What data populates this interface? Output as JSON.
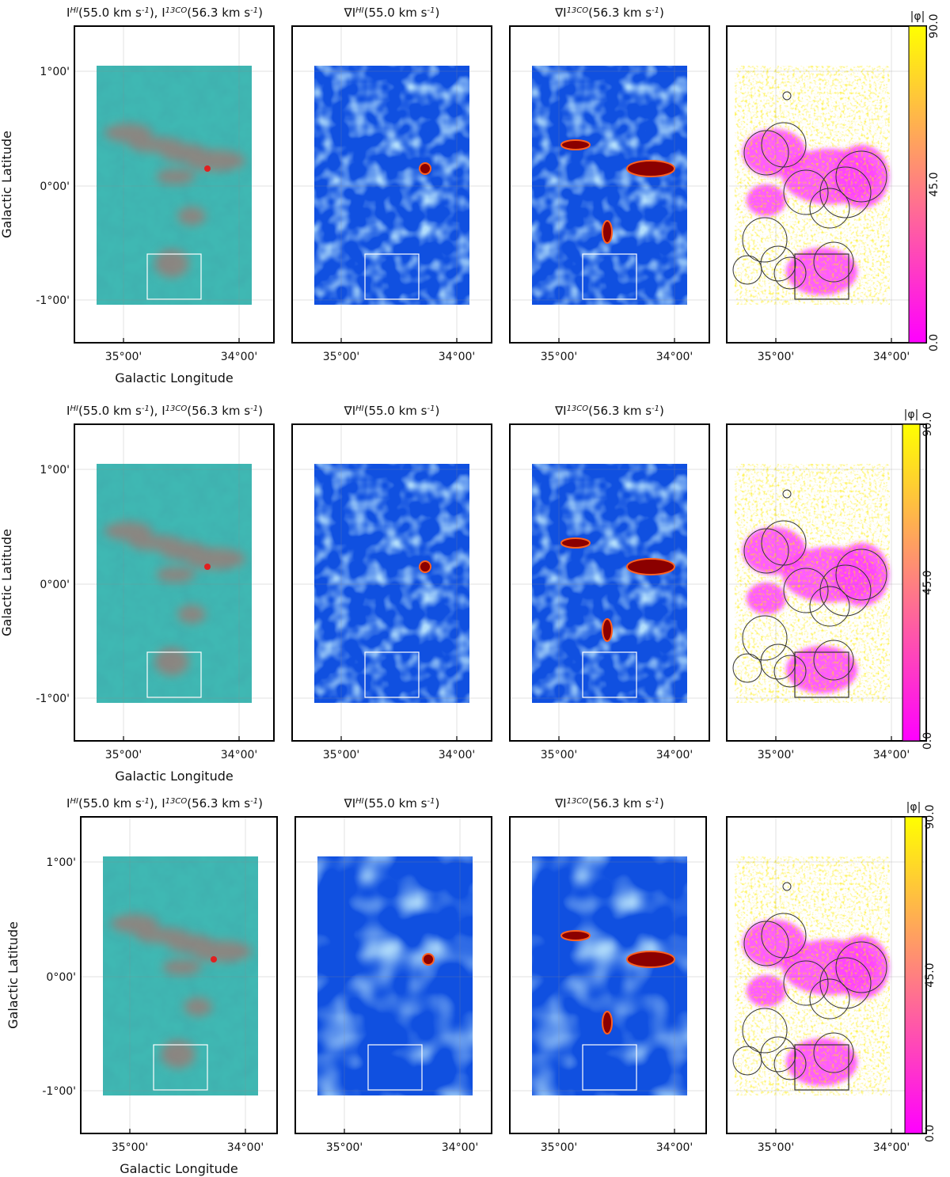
{
  "figure": {
    "rows": [
      {
        "titles": [
          "I^HI(55.0 km s^-1), I^13CO(56.3 km s^-1)",
          "∇I^HI(55.0 km s^-1)",
          "∇I^13CO(56.3 km s^-1)"
        ],
        "xlabel": "Galactic Longitude",
        "ylabel": "Galactic Latitude"
      },
      {
        "titles": [
          "I^HI(55.0 km s^-1), I^13CO(56.3 km s^-1)",
          "∇I^HI(55.0 km s^-1)",
          "∇I^13CO(56.3 km s^-1)"
        ],
        "xlabel": "Galactic Longitude",
        "ylabel": "Galactic Latitude"
      },
      {
        "titles": [
          "I^HI(55.0 km s^-1), I^13CO(56.3 km s^-1)",
          "∇I^HI(55.0 km s^-1)",
          "∇I^13CO(56.3 km s^-1)"
        ],
        "xlabel": "Galactic Longitude",
        "ylabel": "Galactic Latitude"
      }
    ],
    "x_ticks": [
      "35°00'",
      "34°00'"
    ],
    "y_ticks": [
      "1°00'",
      "0°00'",
      "-1°00'"
    ],
    "colorbar": {
      "label": "|φ|",
      "ticks": [
        "90.0",
        "45.0",
        "0.0"
      ],
      "range": [
        0,
        90
      ],
      "colors": [
        "#ff00ff",
        "#ff8080",
        "#ffff00"
      ]
    },
    "colors": {
      "hi_background": "#3fb8b3",
      "co_overlay": "#c8605a",
      "gradient_low": "#1050e0",
      "gradient_mid": "#40c0ff",
      "gradient_high": "#8b0000"
    }
  }
}
